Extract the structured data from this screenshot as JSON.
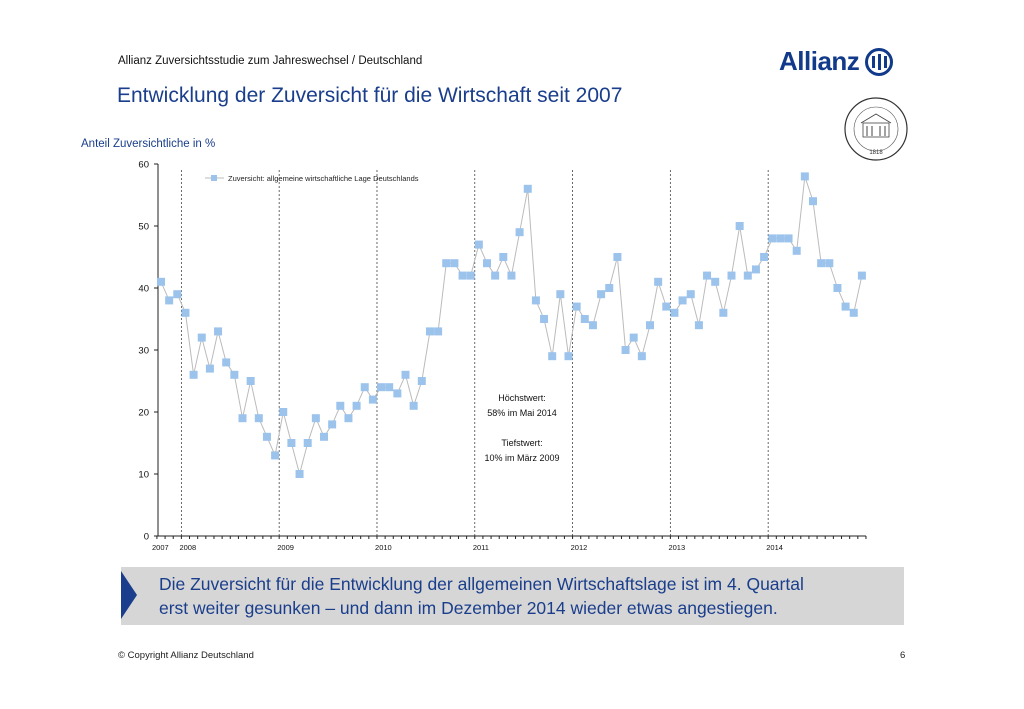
{
  "header": {
    "subtitle": "Allianz Zuversichtsstudie zum Jahreswechsel / Deutschland",
    "title": "Entwicklung der Zuversicht für die Wirtschaft seit 2007",
    "logo_text": "Allianz",
    "seal_text": "UNIVERSITÄT HOHENHEIM 1818"
  },
  "colors": {
    "brand": "#1a3e8c",
    "marker": "#9cc3ec",
    "line": "#bbbbbb",
    "banner": "#d6d6d6"
  },
  "chart_data": {
    "type": "line",
    "ylabel": "Anteil Zuversichtliche in %",
    "ylim": [
      0,
      60
    ],
    "yticks": [
      0,
      10,
      20,
      30,
      40,
      50,
      60
    ],
    "year_labels": [
      "2007",
      "2008",
      "2009",
      "2010",
      "2011",
      "2012",
      "2013",
      "2014"
    ],
    "start": "2007-10",
    "legend": "Zuversicht: allgemeine wirtschaftliche Lage Deutschlands",
    "legend_position": "top-left",
    "series": [
      {
        "name": "Zuversicht: allgemeine wirtschaftliche Lage Deutschlands",
        "values": [
          41,
          38,
          39,
          36,
          26,
          32,
          27,
          33,
          28,
          26,
          19,
          25,
          19,
          16,
          13,
          20,
          15,
          10,
          15,
          19,
          16,
          18,
          21,
          19,
          21,
          24,
          22,
          24,
          24,
          23,
          26,
          21,
          25,
          33,
          33,
          44,
          44,
          42,
          42,
          47,
          44,
          42,
          45,
          42,
          49,
          56,
          38,
          35,
          29,
          39,
          29,
          37,
          35,
          34,
          39,
          40,
          45,
          30,
          32,
          29,
          34,
          41,
          37,
          36,
          38,
          39,
          34,
          42,
          41,
          36,
          42,
          50,
          42,
          43,
          45,
          48,
          48,
          48,
          46,
          58,
          54,
          44,
          44,
          40,
          37,
          36,
          42
        ]
      }
    ],
    "annotations": [
      "Höchstwert:",
      "58% im Mai 2014",
      "Tiefstwert:",
      "10% im März 2009"
    ]
  },
  "banner": {
    "line1": "Die Zuversicht für die Entwicklung der allgemeinen Wirtschaftslage ist im 4. Quartal",
    "line2": "erst weiter gesunken – und dann im Dezember 2014 wieder etwas angestiegen."
  },
  "footer": {
    "copyright": "© Copyright Allianz Deutschland",
    "page": "6"
  }
}
